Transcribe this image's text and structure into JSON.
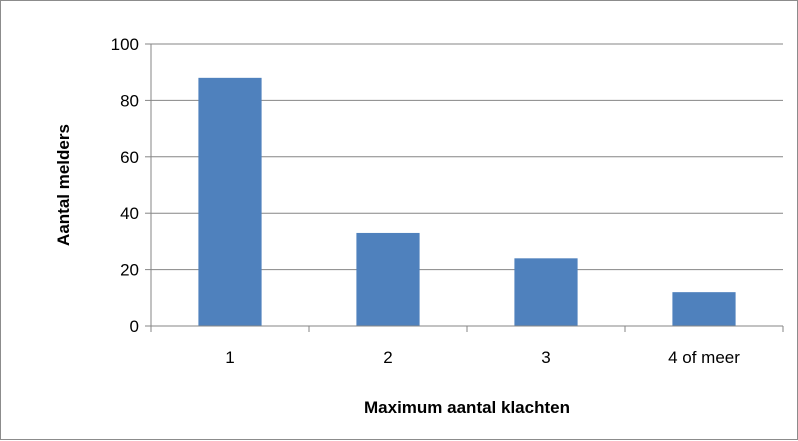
{
  "chart_data": {
    "type": "bar",
    "title": "",
    "xlabel": "Maximum aantal klachten",
    "ylabel": "Aantal melders",
    "categories": [
      "1",
      "2",
      "3",
      "4 of meer"
    ],
    "series": [
      {
        "values": [
          88,
          33,
          24,
          12
        ]
      }
    ],
    "ylim": [
      0,
      100
    ],
    "yticks": [
      0,
      20,
      40,
      60,
      80,
      100
    ],
    "ytick_labels": [
      "0",
      "20",
      "40",
      "60",
      "80",
      "100"
    ],
    "grid": "horizontal major gridlines",
    "legend": "none",
    "colors": {
      "bar": "#4f81bd",
      "gridline": "#868686",
      "axis": "#868686",
      "frame": "#8c8c8c"
    }
  }
}
